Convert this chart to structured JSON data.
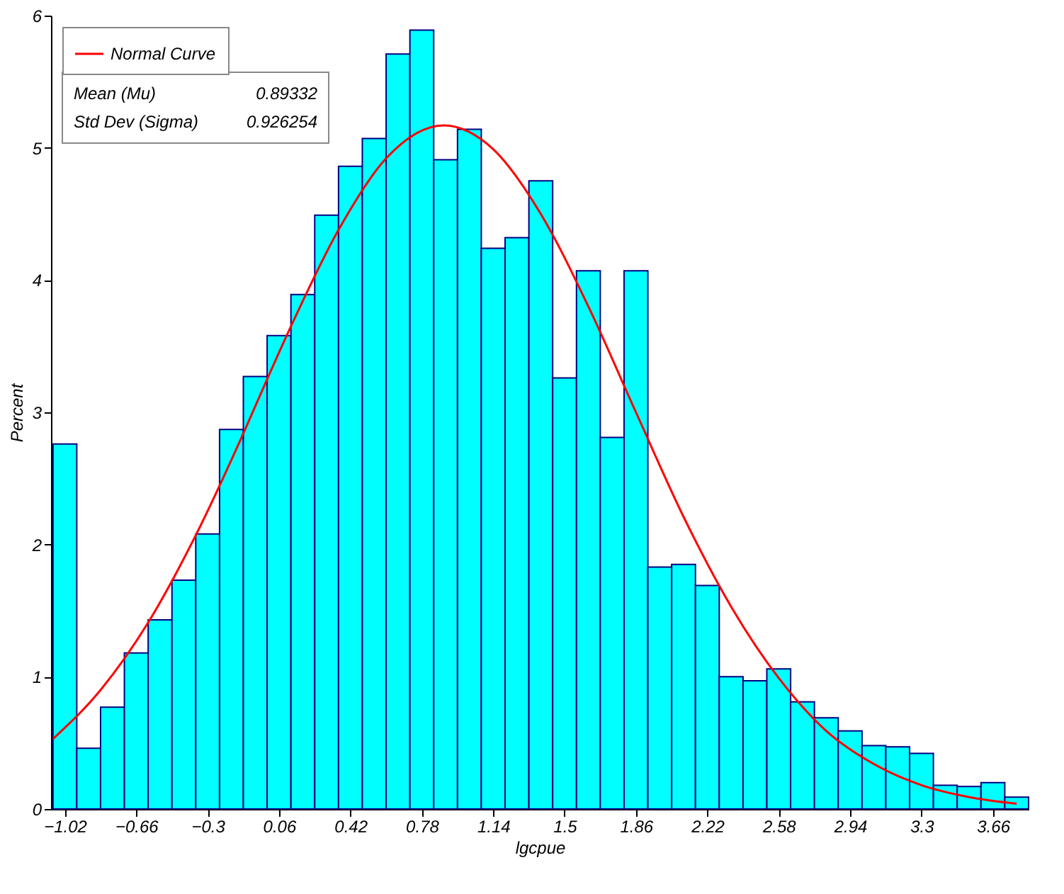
{
  "chart_data": {
    "type": "histogram",
    "xlabel": "lgcpue",
    "ylabel": "Percent",
    "bins": [
      -1.08,
      -0.96,
      -0.84,
      -0.72,
      -0.6,
      -0.48,
      -0.36,
      -0.24,
      -0.12,
      0.0,
      0.12,
      0.24,
      0.36,
      0.48,
      0.6,
      0.72,
      0.84,
      0.96,
      1.08,
      1.2,
      1.32,
      1.44,
      1.56,
      1.68,
      1.8,
      1.92,
      2.04,
      2.16,
      2.28,
      2.4,
      2.52,
      2.64,
      2.76,
      2.88,
      3.0,
      3.12,
      3.24,
      3.36,
      3.48,
      3.6,
      3.72,
      3.84
    ],
    "values": [
      2.76,
      0.46,
      0.77,
      1.18,
      1.43,
      1.73,
      2.08,
      2.87,
      3.27,
      3.58,
      3.89,
      4.49,
      4.86,
      5.07,
      5.71,
      5.89,
      4.91,
      5.14,
      4.24,
      4.32,
      4.75,
      3.26,
      4.07,
      2.81,
      4.07,
      1.83,
      1.85,
      1.69,
      1.0,
      0.97,
      1.06,
      0.81,
      0.69,
      0.59,
      0.48,
      0.47,
      0.42,
      0.18,
      0.17,
      0.2,
      0.09
    ],
    "color": "#00ffff",
    "series": [
      {
        "type": "line",
        "name": "Normal Curve",
        "color": "#ff0000",
        "x": [
          -1.08,
          -0.84,
          -0.6,
          -0.36,
          -0.12,
          0.0,
          0.12,
          0.36,
          0.6,
          0.89,
          1.14,
          1.38,
          1.62,
          1.86,
          2.1,
          2.34,
          2.58,
          2.82,
          3.06,
          3.3,
          3.54,
          3.78
        ],
        "values": [
          0.53,
          0.9,
          1.41,
          2.07,
          2.84,
          3.25,
          3.65,
          4.38,
          4.92,
          5.17,
          4.99,
          4.5,
          3.8,
          3.0,
          2.21,
          1.53,
          0.99,
          0.59,
          0.34,
          0.18,
          0.09,
          0.04
        ]
      }
    ],
    "annotations": [
      "Mean (Mu)",
      "0.89332",
      "Std Dev (Sigma)",
      "0.926254"
    ],
    "xlim": [
      -1.09,
      3.84
    ],
    "xticks": [
      -1.02,
      -0.66,
      -0.3,
      0.06,
      0.42,
      0.78,
      1.14,
      1.5,
      1.86,
      2.22,
      2.58,
      2.94,
      3.3,
      3.66
    ],
    "ylim": [
      0,
      6
    ],
    "yticks": [
      0,
      1,
      2,
      3,
      4,
      5,
      6
    ],
    "grid": false,
    "legend": "top left"
  }
}
